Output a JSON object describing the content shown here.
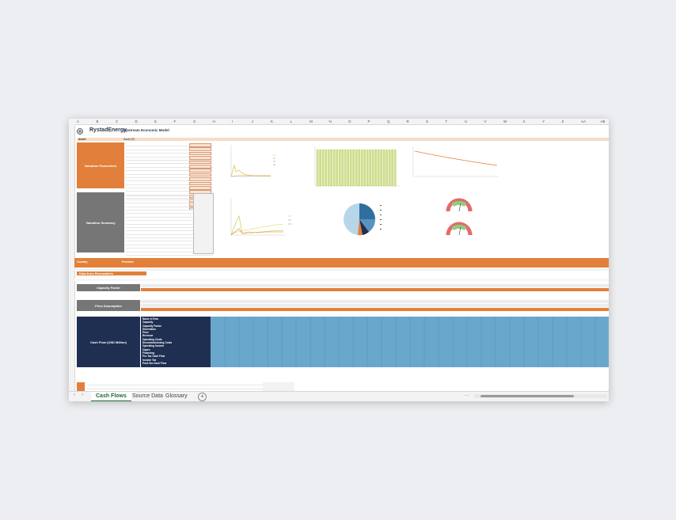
{
  "app": {
    "brand": "RystadEnergy",
    "model_title": "Upstream Economic Model"
  },
  "columns": [
    "A",
    "B",
    "C",
    "D",
    "E",
    "F",
    "G",
    "H",
    "I",
    "J",
    "K",
    "L",
    "M",
    "N",
    "O",
    "P",
    "Q",
    "R",
    "S",
    "T",
    "U",
    "V",
    "W",
    "X",
    "Y",
    "Z",
    "AA",
    "AB"
  ],
  "left_panels": {
    "valuation_parameters": "Valuation Parameters",
    "valuation_summary": "Valuation Summary",
    "price_assumption": "Price Assumption",
    "cash_flow": "Cash Flow (USD Million)",
    "capacity_factor": "Capacity Factor",
    "asset_label": "Asset",
    "asset_value": "Asset (P)"
  },
  "bands": {
    "country": "Country",
    "province": "Province",
    "data_from": "Data from Renewables"
  },
  "cashflow_labels": [
    "Name in Row",
    "Capacity",
    "Capacity Factor",
    "Generation",
    "Price",
    "Revenue",
    "Operating Costs",
    "Decommissioning Costs",
    "Operating Income",
    "Capex",
    "Financing",
    "Pre-Tax Cash Flow",
    "Income Tax",
    "Post-Tax Cash Flow"
  ],
  "tabs": {
    "active": "Cash Flows",
    "source": "Source Data",
    "glossary": "Glossary",
    "add": "+"
  },
  "nav": {
    "prev": "‹",
    "next": "›",
    "more": "..."
  },
  "colors": {
    "orange": "#e2803b",
    "navy": "#1f2f52",
    "grey": "#767676",
    "blue_fill": "#6aa7cd",
    "tab_green": "#1e6b3c"
  }
}
